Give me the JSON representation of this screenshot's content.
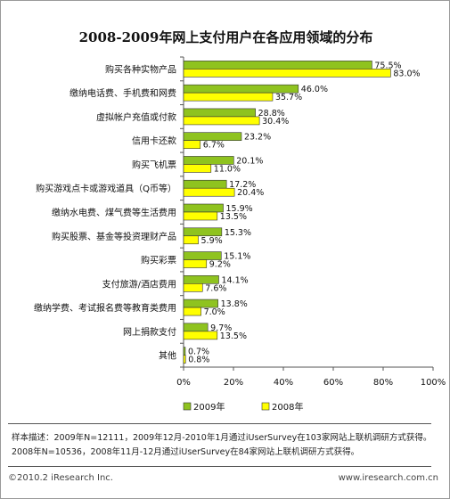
{
  "title": "2008-2009年网上支付用户在各应用领域的分布",
  "chart_data": {
    "type": "bar",
    "orientation": "horizontal",
    "categories": [
      "购买各种实物产品",
      "缴纳电话费、手机费和网费",
      "虚拟帐户充值或付款",
      "信用卡还款",
      "购买飞机票",
      "购买游戏点卡或游戏道具（Q币等）",
      "缴纳水电费、煤气费等生活费用",
      "购买股票、基金等投资理财产品",
      "购买彩票",
      "支付旅游/酒店费用",
      "缴纳学费、考试报名费等教育类费用",
      "网上捐款支付",
      "其他"
    ],
    "series": [
      {
        "name": "2009年",
        "color": "#8fc31f",
        "values": [
          75.5,
          46.0,
          28.8,
          23.2,
          20.1,
          17.2,
          15.9,
          15.3,
          15.1,
          14.1,
          13.8,
          9.7,
          0.7
        ],
        "labels": [
          "75.5%",
          "46.0%",
          "28.8%",
          "23.2%",
          "20.1%",
          "17.2%",
          "15.9%",
          "15.3%",
          "15.1%",
          "14.1%",
          "13.8%",
          "9.7%",
          "0.7%"
        ]
      },
      {
        "name": "2008年",
        "color": "#ffff00",
        "values": [
          83.0,
          35.7,
          30.4,
          6.7,
          11.0,
          20.4,
          13.5,
          5.9,
          9.2,
          7.6,
          7.0,
          13.5,
          0.8
        ],
        "labels": [
          "83.0%",
          "35.7%",
          "30.4%",
          "6.7%",
          "11.0%",
          "20.4%",
          "13.5%",
          "5.9%",
          "9.2%",
          "7.6%",
          "7.0%",
          "13.5%",
          "0.8%"
        ]
      }
    ],
    "xlim": [
      0,
      100
    ],
    "xticks": [
      "0%",
      "20%",
      "40%",
      "60%",
      "80%",
      "100%"
    ],
    "grid": false,
    "legend_position": "bottom"
  },
  "note": {
    "line1": "样本描述：2009年N=12111，2009年12月-2010年1月通过iUserSurvey在103家网站上联机调研方式获得。2008年N=10536，2008年11月-12月通过iUserSurvey在84家网站上联机调研方式获得。"
  },
  "footer": {
    "copyright": "©2010.2 iResearch Inc.",
    "url": "www.iresearch.com.cn"
  }
}
